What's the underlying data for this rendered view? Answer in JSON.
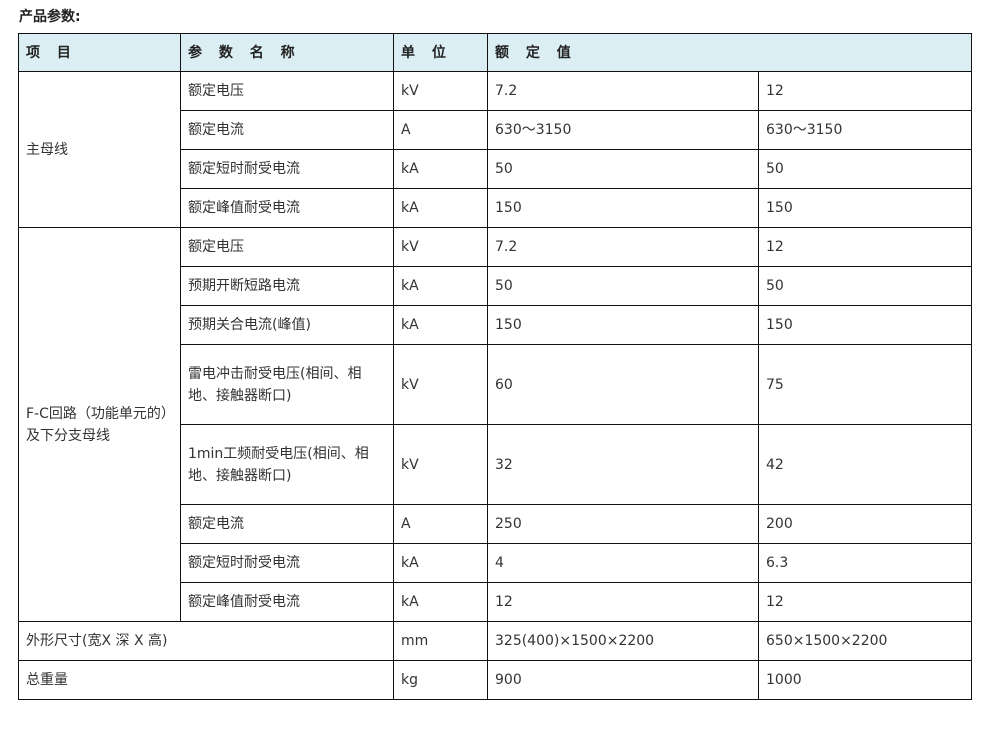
{
  "title": "产品参数:",
  "header": [
    "项 目",
    "参 数 名 称",
    "单 位",
    "额 定 值"
  ],
  "groups": [
    {
      "label": "主母线",
      "rows": [
        [
          "额定电压",
          "kV",
          "7.2",
          "12"
        ],
        [
          "额定电流",
          "A",
          "630～3150",
          "630～3150"
        ],
        [
          "额定短时耐受电流",
          "kA",
          "50",
          "50"
        ],
        [
          "额定峰值耐受电流",
          "kA",
          "150",
          "150"
        ]
      ]
    },
    {
      "label": "F-C回路（功能单元的）及下分支母线",
      "rows": [
        [
          "额定电压",
          "kV",
          "7.2",
          "12"
        ],
        [
          "预期开断短路电流",
          "kA",
          "50",
          "50"
        ],
        [
          "预期关合电流(峰值)",
          "kA",
          "150",
          "150"
        ],
        [
          "雷电冲击耐受电压(相间、相地、接触器断口)",
          "kV",
          "60",
          "75"
        ],
        [
          "1min工频耐受电压(相间、相地、接触器断口)",
          "kV",
          "32",
          "42"
        ],
        [
          "额定电流",
          "A",
          "250",
          "200"
        ],
        [
          "额定短时耐受电流",
          "kA",
          "4",
          "6.3"
        ],
        [
          "额定峰值耐受电流",
          "kA",
          "12",
          "12"
        ]
      ]
    }
  ],
  "footer_rows": [
    [
      "外形尺寸(宽X 深 X 高)",
      "mm",
      "325(400)×1500×2200",
      "650×1500×2200"
    ],
    [
      "总重量",
      "kg",
      "900",
      "1000"
    ]
  ]
}
